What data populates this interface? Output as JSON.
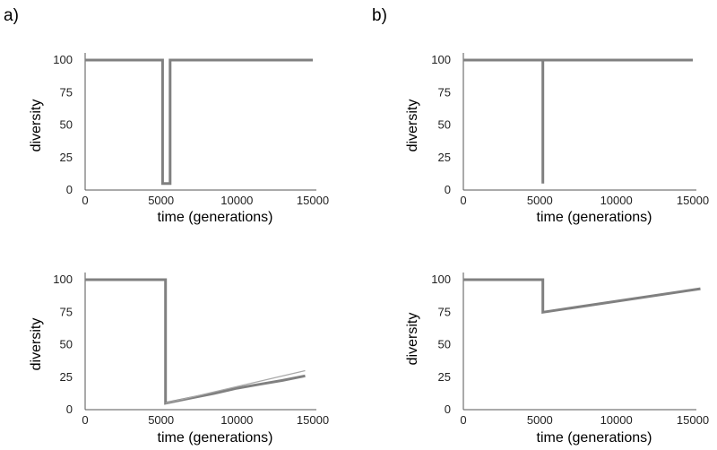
{
  "panel_labels": [
    "a)",
    "b)"
  ],
  "chart_data": [
    {
      "type": "line",
      "panel": "a)",
      "xlabel": "time (generations)",
      "ylabel": "diversity",
      "xlim": [
        0,
        15000
      ],
      "ylim": [
        0,
        100
      ],
      "xticks": [
        0,
        5000,
        10000,
        15000
      ],
      "yticks": [
        0,
        25,
        50,
        75,
        100
      ],
      "series": [
        {
          "style": "main",
          "x": [
            0,
            5100,
            5100,
            5600,
            5600,
            15000
          ],
          "y": [
            100,
            100,
            5,
            5,
            100,
            100
          ]
        }
      ]
    },
    {
      "type": "line",
      "panel": "b)",
      "xlabel": "time (generations)",
      "ylabel": "diversity",
      "xlim": [
        0,
        15000
      ],
      "ylim": [
        0,
        100
      ],
      "xticks": [
        0,
        5000,
        10000,
        15000
      ],
      "yticks": [
        0,
        25,
        50,
        75,
        100
      ],
      "series": [
        {
          "style": "main",
          "x": [
            0,
            5200,
            5200,
            5200,
            15000
          ],
          "y": [
            100,
            100,
            5,
            100,
            100
          ]
        }
      ]
    },
    {
      "type": "line",
      "panel": "a)",
      "xlabel": "time (generations)",
      "ylabel": "diversity",
      "xlim": [
        0,
        15000
      ],
      "ylim": [
        0,
        100
      ],
      "xticks": [
        0,
        5000,
        10000,
        15000
      ],
      "yticks": [
        0,
        25,
        50,
        75,
        100
      ],
      "series": [
        {
          "style": "main",
          "x": [
            0,
            5300,
            5300,
            7000,
            8500,
            10000,
            11500,
            13000,
            14500
          ],
          "y": [
            100,
            100,
            5,
            9,
            12.5,
            16.5,
            19.5,
            22.5,
            26
          ]
        },
        {
          "style": "thin",
          "x": [
            5300,
            14500
          ],
          "y": [
            5,
            30
          ]
        }
      ]
    },
    {
      "type": "line",
      "panel": "b)",
      "xlabel": "time (generations)",
      "ylabel": "diversity",
      "xlim": [
        0,
        15000
      ],
      "ylim": [
        0,
        100
      ],
      "xticks": [
        0,
        5000,
        10000,
        15000
      ],
      "yticks": [
        0,
        25,
        50,
        75,
        100
      ],
      "series": [
        {
          "style": "main",
          "x": [
            0,
            5200,
            5200,
            15500
          ],
          "y": [
            100,
            100,
            75,
            93
          ]
        }
      ]
    }
  ]
}
